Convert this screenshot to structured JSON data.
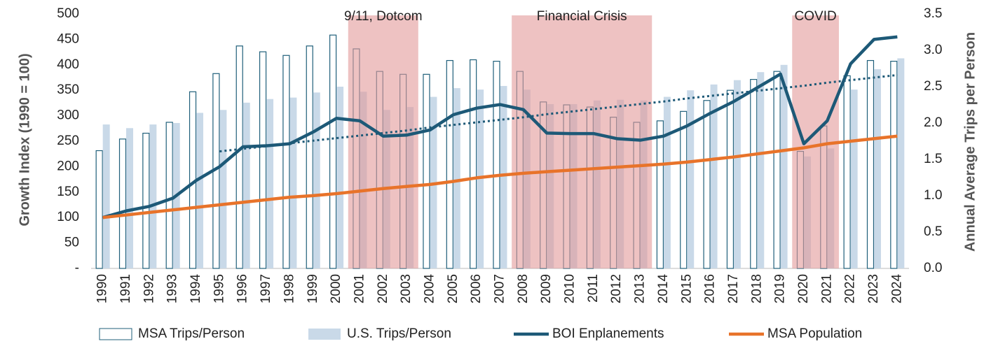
{
  "chart_data": {
    "type": "combo",
    "ylabel": "Growth Index (1990 = 100)",
    "y2label": "Annual Average Trips per Person",
    "categories": [
      "1990",
      "1991",
      "1992",
      "1993",
      "1994",
      "1995",
      "1996",
      "1997",
      "1998",
      "1999",
      "2000",
      "2001",
      "2002",
      "2003",
      "2004",
      "2005",
      "2006",
      "2007",
      "2008",
      "2009",
      "2010",
      "2011",
      "2012",
      "2013",
      "2014",
      "2015",
      "2016",
      "2017",
      "2018",
      "2019",
      "2020",
      "2021",
      "2022",
      "2023",
      "2024"
    ],
    "ylim": [
      0,
      500
    ],
    "yticks": [
      {
        "value": 0,
        "label": "-"
      },
      50,
      100,
      150,
      200,
      250,
      300,
      350,
      400,
      450,
      500
    ],
    "y2lim": [
      0,
      3.5
    ],
    "y2ticks": [
      {
        "value": 0,
        "label": "0.0"
      },
      0.5,
      {
        "value": 1,
        "label": "1.0"
      },
      1.5,
      {
        "value": 2,
        "label": "2.0"
      },
      2.5,
      {
        "value": 3,
        "label": "3.0"
      },
      3.5
    ],
    "grid": false,
    "shaded_regions": [
      {
        "label": "9/11, Dotcom",
        "from": "2001",
        "to": "2003",
        "color": "#e39a9a"
      },
      {
        "label": "Financial Crisis",
        "from": "2008",
        "to": "2013",
        "color": "#e39a9a"
      },
      {
        "label": "COVID",
        "from": "2020",
        "to": "2021",
        "color": "#e39a9a"
      }
    ],
    "series": [
      {
        "name": "MSA Trips/Person",
        "type": "bar",
        "style": "outline",
        "axis": "y2",
        "color": "#1f5f7a",
        "values": [
          1.62,
          1.78,
          1.86,
          2.01,
          2.43,
          2.68,
          3.06,
          2.98,
          2.93,
          3.06,
          3.21,
          3.02,
          2.71,
          2.67,
          2.67,
          2.86,
          2.87,
          2.85,
          2.71,
          2.29,
          2.25,
          2.22,
          2.08,
          2.01,
          2.03,
          2.16,
          2.31,
          2.45,
          2.6,
          2.71,
          1.61,
          1.96,
          2.65,
          2.86,
          2.85
        ]
      },
      {
        "name": "U.S. Trips/Person",
        "type": "bar",
        "style": "filled",
        "axis": "y2",
        "color": "#c9d9e8",
        "values": [
          1.98,
          1.93,
          1.98,
          2.0,
          2.14,
          2.18,
          2.28,
          2.33,
          2.35,
          2.42,
          2.5,
          2.43,
          2.18,
          2.22,
          2.36,
          2.48,
          2.46,
          2.51,
          2.46,
          2.26,
          2.26,
          2.31,
          2.32,
          2.31,
          2.36,
          2.45,
          2.53,
          2.59,
          2.7,
          2.8,
          1.54,
          1.65,
          2.46,
          2.74,
          2.89
        ]
      },
      {
        "name": "BOI Enplanements",
        "type": "line",
        "color": "#1d5977",
        "values": [
          100,
          113,
          122,
          138,
          173,
          200,
          239,
          241,
          245,
          268,
          295,
          290,
          260,
          262,
          272,
          302,
          315,
          322,
          312,
          266,
          265,
          265,
          255,
          252,
          260,
          280,
          305,
          328,
          355,
          382,
          245,
          290,
          402,
          450,
          455
        ]
      },
      {
        "name": "MSA Population",
        "type": "line",
        "color": "#e8732a",
        "values": [
          100,
          105,
          110,
          115,
          120,
          125,
          130,
          135,
          140,
          143,
          147,
          152,
          157,
          161,
          165,
          171,
          178,
          183,
          187,
          190,
          193,
          196,
          199,
          202,
          205,
          209,
          214,
          219,
          225,
          231,
          237,
          245,
          250,
          255,
          260
        ]
      },
      {
        "type": "line",
        "style": "dotted",
        "color": "#1d5977",
        "values": [
          null,
          null,
          null,
          null,
          null,
          230,
          235,
          240,
          246,
          251,
          256,
          261,
          266,
          271,
          277,
          282,
          287,
          292,
          297,
          303,
          308,
          313,
          318,
          323,
          328,
          334,
          339,
          344,
          349,
          354,
          359,
          365,
          370,
          375,
          380
        ]
      }
    ]
  }
}
